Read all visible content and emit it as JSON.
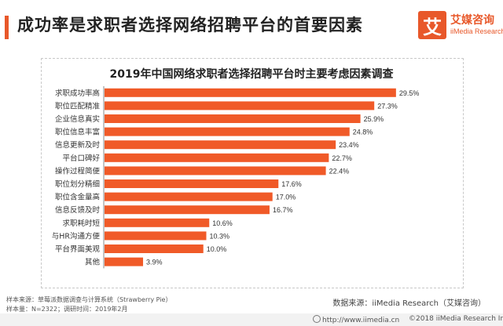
{
  "header": {
    "title": "成功率是求职者选择网络招聘平台的首要因素",
    "accent_color": "#e8582a"
  },
  "logo": {
    "mark": "艾",
    "name_cn": "艾媒咨询",
    "name_en": "iiMedia Research"
  },
  "chart_data": {
    "type": "bar",
    "orientation": "horizontal",
    "title": "2019年中国网络求职者选择招聘平台时主要考虑因素调查",
    "bar_color": "#f05a28",
    "categories": [
      "求职成功率高",
      "职位匹配精准",
      "企业信息真实",
      "职位信息丰富",
      "信息更新及时",
      "平台口碑好",
      "操作过程简便",
      "职位划分精细",
      "职位含金量高",
      "信息反馈及时",
      "求职耗时短",
      "与HR沟通方便",
      "平台界面美观",
      "其他"
    ],
    "values": [
      29.5,
      27.3,
      25.9,
      24.8,
      23.4,
      22.7,
      22.4,
      17.6,
      17.0,
      16.7,
      10.6,
      10.3,
      10.0,
      3.9
    ],
    "value_labels": [
      "29.5%",
      "27.3%",
      "25.9%",
      "24.8%",
      "23.4%",
      "22.7%",
      "22.4%",
      "17.6%",
      "17.0%",
      "16.7%",
      "10.6%",
      "10.3%",
      "10.0%",
      "3.9%"
    ],
    "xlim": [
      0,
      35
    ],
    "grid": false,
    "legend": "none"
  },
  "footer": {
    "sample_source": "样本来源：草莓派数据调查与计算系统（Strawberry Pie）",
    "sample_size": "样本量：N=2322；调研时间：2019年2月",
    "data_source": "数据来源：iiMedia Research（艾媒咨询）",
    "url": "http://www.iimedia.cn",
    "copyright": "©2018  iiMedia Research  Inc"
  }
}
